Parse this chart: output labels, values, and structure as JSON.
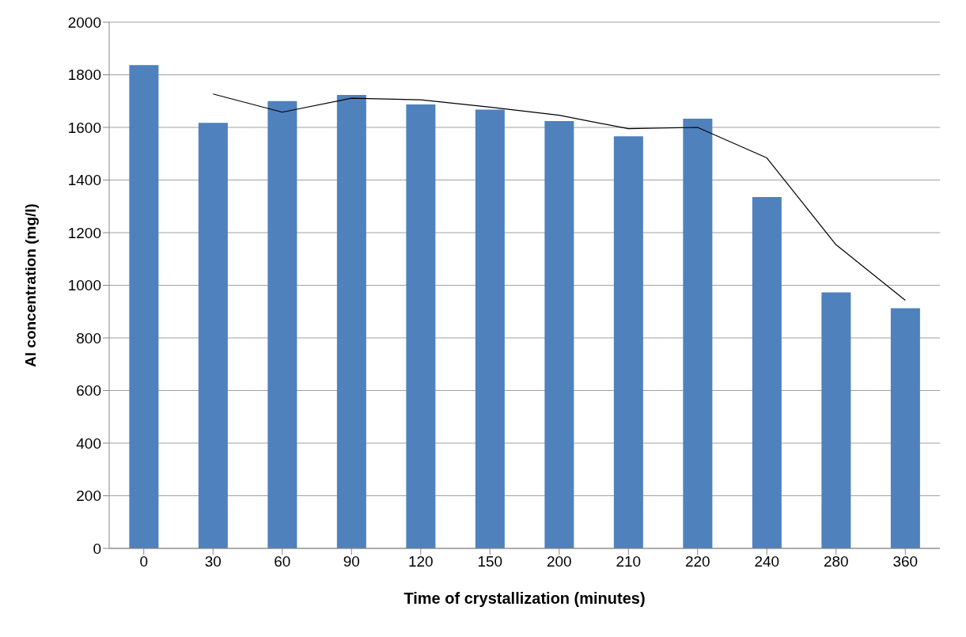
{
  "chart_data": {
    "type": "bar",
    "xlabel": "Time of crystallization  (minutes)",
    "ylabel": "Al concentration (mg/l)",
    "categories": [
      "0",
      "30",
      "60",
      "90",
      "120",
      "150",
      "200",
      "210",
      "220",
      "240",
      "280",
      "360"
    ],
    "series": [
      {
        "color": "#4f81bd",
        "values": [
          1837,
          1617,
          1700,
          1723,
          1687,
          1668,
          1624,
          1566,
          1633,
          1335,
          973,
          913
        ]
      },
      {
        "type": "line",
        "color": "#000000",
        "values": [
          null,
          1727,
          1658,
          1711,
          1705,
          1677,
          1646,
          1595,
          1600,
          1484,
          1154,
          943
        ]
      }
    ],
    "ylim": [
      0,
      2000
    ],
    "yticks": [
      0,
      200,
      400,
      600,
      800,
      1000,
      1200,
      1400,
      1600,
      1800,
      2000
    ],
    "grid": "y",
    "legend": false,
    "marker": "none",
    "line_style": "solid"
  }
}
